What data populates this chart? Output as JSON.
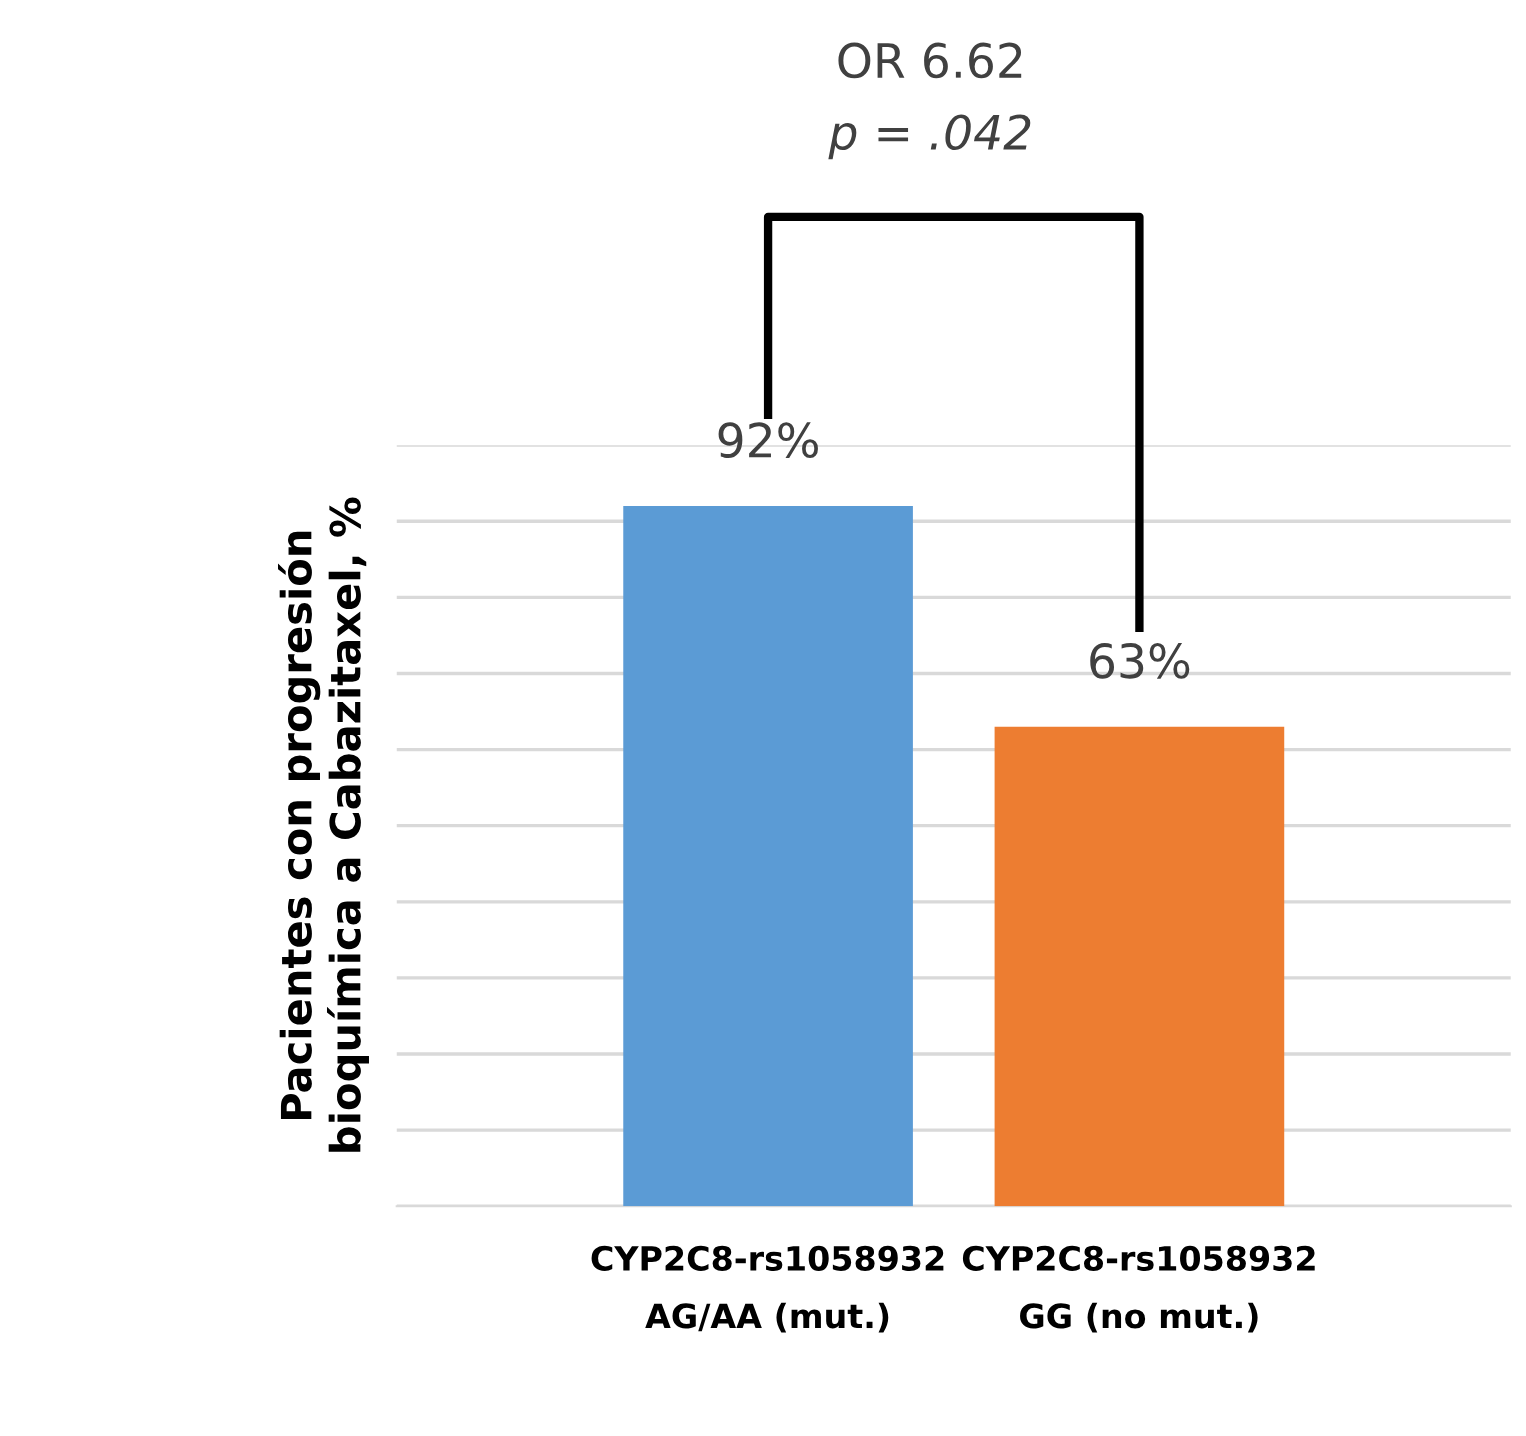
{
  "chart_data": {
    "type": "bar",
    "ylabel": "Pacientes con progresión\nbioquímica a Cabazitaxel, %",
    "categories": [
      "CYP2C8-rs1058932\nAG/AA (mut.)",
      "CYP2C8-rs1058932\nGG (no mut.)"
    ],
    "values": [
      92,
      63
    ],
    "colors": [
      "#5b9bd5",
      "#ed7d31"
    ],
    "value_labels": [
      "92%",
      "63%"
    ],
    "ylim": [
      0,
      100
    ],
    "yticks": [
      {
        "value": 0,
        "label": null
      },
      {
        "value": 10,
        "label": null
      },
      {
        "value": 20,
        "label": null
      },
      {
        "value": 30,
        "label": null
      },
      {
        "value": 40,
        "label": null
      },
      {
        "value": 50,
        "label": null
      },
      {
        "value": 60,
        "label": null
      },
      {
        "value": 70,
        "label": null
      },
      {
        "value": 80,
        "label": null
      },
      {
        "value": 90,
        "label": null
      },
      {
        "value": 100,
        "label": null
      }
    ],
    "grid": "y",
    "tick_labels": "x",
    "annotations": [
      "OR 6.62",
      "p = .042"
    ]
  }
}
